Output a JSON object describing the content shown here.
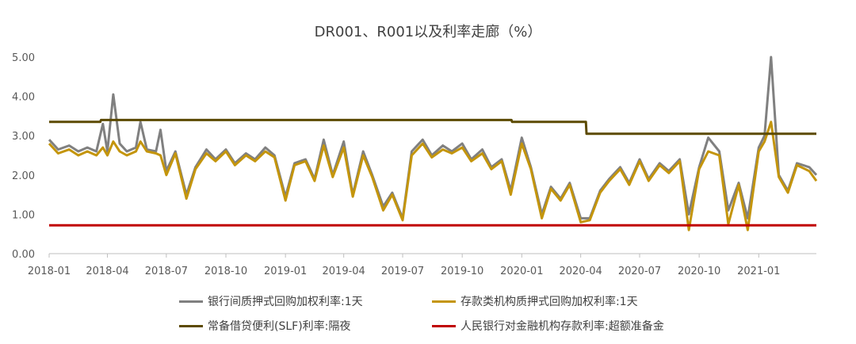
{
  "chart_data": {
    "type": "line",
    "title": "DR001、R001以及利率走廊（%）",
    "ylim": [
      0,
      5
    ],
    "yticks": [
      "0.00",
      "1.00",
      "2.00",
      "3.00",
      "4.00",
      "5.00"
    ],
    "x_range": [
      "2018-01-01",
      "2021-03-31"
    ],
    "xticks": [
      "2018-01",
      "2018-04",
      "2018-07",
      "2018-10",
      "2019-01",
      "2019-04",
      "2019-07",
      "2019-10",
      "2020-01",
      "2020-04",
      "2020-07",
      "2020-10",
      "2021-01"
    ],
    "grid": false,
    "legend_position": "bottom",
    "series": [
      {
        "name": "银行间质押式回购加权利率:1天",
        "color": "#808080",
        "points": [
          [
            "2018-01-01",
            2.9
          ],
          [
            "2018-01-15",
            2.65
          ],
          [
            "2018-02-01",
            2.75
          ],
          [
            "2018-02-15",
            2.6
          ],
          [
            "2018-03-01",
            2.7
          ],
          [
            "2018-03-15",
            2.6
          ],
          [
            "2018-03-25",
            3.3
          ],
          [
            "2018-04-01",
            2.6
          ],
          [
            "2018-04-10",
            4.05
          ],
          [
            "2018-04-20",
            2.8
          ],
          [
            "2018-05-01",
            2.6
          ],
          [
            "2018-05-15",
            2.7
          ],
          [
            "2018-05-22",
            3.35
          ],
          [
            "2018-06-01",
            2.65
          ],
          [
            "2018-06-15",
            2.6
          ],
          [
            "2018-06-22",
            3.15
          ],
          [
            "2018-07-01",
            2.1
          ],
          [
            "2018-07-15",
            2.6
          ],
          [
            "2018-08-01",
            1.5
          ],
          [
            "2018-08-15",
            2.2
          ],
          [
            "2018-09-01",
            2.65
          ],
          [
            "2018-09-15",
            2.4
          ],
          [
            "2018-10-01",
            2.65
          ],
          [
            "2018-10-15",
            2.3
          ],
          [
            "2018-11-01",
            2.55
          ],
          [
            "2018-11-15",
            2.4
          ],
          [
            "2018-12-01",
            2.7
          ],
          [
            "2018-12-15",
            2.5
          ],
          [
            "2019-01-01",
            1.45
          ],
          [
            "2019-01-15",
            2.3
          ],
          [
            "2019-02-01",
            2.4
          ],
          [
            "2019-02-15",
            1.9
          ],
          [
            "2019-03-01",
            2.9
          ],
          [
            "2019-03-15",
            2.0
          ],
          [
            "2019-04-01",
            2.85
          ],
          [
            "2019-04-15",
            1.5
          ],
          [
            "2019-05-01",
            2.6
          ],
          [
            "2019-05-15",
            2.0
          ],
          [
            "2019-06-01",
            1.2
          ],
          [
            "2019-06-15",
            1.55
          ],
          [
            "2019-07-01",
            0.9
          ],
          [
            "2019-07-15",
            2.6
          ],
          [
            "2019-08-01",
            2.9
          ],
          [
            "2019-08-15",
            2.5
          ],
          [
            "2019-09-01",
            2.75
          ],
          [
            "2019-09-15",
            2.6
          ],
          [
            "2019-10-01",
            2.8
          ],
          [
            "2019-10-15",
            2.4
          ],
          [
            "2019-11-01",
            2.65
          ],
          [
            "2019-11-15",
            2.2
          ],
          [
            "2019-12-01",
            2.4
          ],
          [
            "2019-12-15",
            1.6
          ],
          [
            "2020-01-01",
            2.95
          ],
          [
            "2020-01-15",
            2.2
          ],
          [
            "2020-02-01",
            1.0
          ],
          [
            "2020-02-15",
            1.7
          ],
          [
            "2020-03-01",
            1.4
          ],
          [
            "2020-03-15",
            1.8
          ],
          [
            "2020-04-01",
            0.9
          ],
          [
            "2020-04-15",
            0.9
          ],
          [
            "2020-05-01",
            1.6
          ],
          [
            "2020-05-15",
            1.9
          ],
          [
            "2020-06-01",
            2.2
          ],
          [
            "2020-06-15",
            1.8
          ],
          [
            "2020-07-01",
            2.4
          ],
          [
            "2020-07-15",
            1.9
          ],
          [
            "2020-08-01",
            2.3
          ],
          [
            "2020-08-15",
            2.1
          ],
          [
            "2020-09-01",
            2.4
          ],
          [
            "2020-09-15",
            1.0
          ],
          [
            "2020-10-01",
            2.2
          ],
          [
            "2020-10-15",
            2.95
          ],
          [
            "2020-11-01",
            2.6
          ],
          [
            "2020-11-15",
            1.1
          ],
          [
            "2020-12-01",
            1.8
          ],
          [
            "2020-12-15",
            0.9
          ],
          [
            "2021-01-01",
            2.7
          ],
          [
            "2021-01-10",
            3.0
          ],
          [
            "2021-01-20",
            5.0
          ],
          [
            "2021-02-01",
            2.0
          ],
          [
            "2021-02-15",
            1.6
          ],
          [
            "2021-03-01",
            2.3
          ],
          [
            "2021-03-20",
            2.2
          ],
          [
            "2021-03-31",
            2.0
          ]
        ]
      },
      {
        "name": "存款类机构质押式回购加权利率:1天",
        "color": "#C4950C",
        "points": [
          [
            "2018-01-01",
            2.8
          ],
          [
            "2018-01-15",
            2.55
          ],
          [
            "2018-02-01",
            2.65
          ],
          [
            "2018-02-15",
            2.5
          ],
          [
            "2018-03-01",
            2.6
          ],
          [
            "2018-03-15",
            2.5
          ],
          [
            "2018-03-25",
            2.7
          ],
          [
            "2018-04-01",
            2.5
          ],
          [
            "2018-04-10",
            2.85
          ],
          [
            "2018-04-20",
            2.6
          ],
          [
            "2018-05-01",
            2.5
          ],
          [
            "2018-05-15",
            2.6
          ],
          [
            "2018-05-22",
            2.85
          ],
          [
            "2018-06-01",
            2.6
          ],
          [
            "2018-06-15",
            2.55
          ],
          [
            "2018-06-22",
            2.5
          ],
          [
            "2018-07-01",
            2.0
          ],
          [
            "2018-07-15",
            2.55
          ],
          [
            "2018-08-01",
            1.4
          ],
          [
            "2018-08-15",
            2.15
          ],
          [
            "2018-09-01",
            2.55
          ],
          [
            "2018-09-15",
            2.35
          ],
          [
            "2018-10-01",
            2.6
          ],
          [
            "2018-10-15",
            2.25
          ],
          [
            "2018-11-01",
            2.5
          ],
          [
            "2018-11-15",
            2.35
          ],
          [
            "2018-12-01",
            2.6
          ],
          [
            "2018-12-15",
            2.45
          ],
          [
            "2019-01-01",
            1.35
          ],
          [
            "2019-01-15",
            2.25
          ],
          [
            "2019-02-01",
            2.35
          ],
          [
            "2019-02-15",
            1.85
          ],
          [
            "2019-03-01",
            2.75
          ],
          [
            "2019-03-15",
            1.95
          ],
          [
            "2019-04-01",
            2.7
          ],
          [
            "2019-04-15",
            1.45
          ],
          [
            "2019-05-01",
            2.5
          ],
          [
            "2019-05-15",
            1.95
          ],
          [
            "2019-06-01",
            1.1
          ],
          [
            "2019-06-15",
            1.5
          ],
          [
            "2019-07-01",
            0.85
          ],
          [
            "2019-07-15",
            2.5
          ],
          [
            "2019-08-01",
            2.8
          ],
          [
            "2019-08-15",
            2.45
          ],
          [
            "2019-09-01",
            2.65
          ],
          [
            "2019-09-15",
            2.55
          ],
          [
            "2019-10-01",
            2.7
          ],
          [
            "2019-10-15",
            2.35
          ],
          [
            "2019-11-01",
            2.55
          ],
          [
            "2019-11-15",
            2.15
          ],
          [
            "2019-12-01",
            2.35
          ],
          [
            "2019-12-15",
            1.5
          ],
          [
            "2020-01-01",
            2.8
          ],
          [
            "2020-01-15",
            2.15
          ],
          [
            "2020-02-01",
            0.9
          ],
          [
            "2020-02-15",
            1.65
          ],
          [
            "2020-03-01",
            1.35
          ],
          [
            "2020-03-15",
            1.75
          ],
          [
            "2020-04-01",
            0.8
          ],
          [
            "2020-04-15",
            0.85
          ],
          [
            "2020-05-01",
            1.55
          ],
          [
            "2020-05-15",
            1.85
          ],
          [
            "2020-06-01",
            2.15
          ],
          [
            "2020-06-15",
            1.75
          ],
          [
            "2020-07-01",
            2.35
          ],
          [
            "2020-07-15",
            1.85
          ],
          [
            "2020-08-01",
            2.25
          ],
          [
            "2020-08-15",
            2.05
          ],
          [
            "2020-09-01",
            2.35
          ],
          [
            "2020-09-15",
            0.6
          ],
          [
            "2020-10-01",
            2.15
          ],
          [
            "2020-10-15",
            2.6
          ],
          [
            "2020-11-01",
            2.5
          ],
          [
            "2020-11-15",
            0.75
          ],
          [
            "2020-12-01",
            1.75
          ],
          [
            "2020-12-15",
            0.6
          ],
          [
            "2021-01-01",
            2.6
          ],
          [
            "2021-01-10",
            2.85
          ],
          [
            "2021-01-20",
            3.35
          ],
          [
            "2021-02-01",
            1.95
          ],
          [
            "2021-02-15",
            1.55
          ],
          [
            "2021-03-01",
            2.25
          ],
          [
            "2021-03-20",
            2.1
          ],
          [
            "2021-03-31",
            1.85
          ]
        ]
      },
      {
        "name": "常备借贷便利(SLF)利率:隔夜",
        "color": "#5C4A00",
        "points": [
          [
            "2018-01-01",
            3.35
          ],
          [
            "2018-03-21",
            3.35
          ],
          [
            "2018-03-22",
            3.4
          ],
          [
            "2019-12-16",
            3.4
          ],
          [
            "2019-12-17",
            3.35
          ],
          [
            "2020-04-09",
            3.35
          ],
          [
            "2020-04-10",
            3.05
          ],
          [
            "2021-03-31",
            3.05
          ]
        ]
      },
      {
        "name": "人民银行对金融机构存款利率:超额准备金",
        "color": "#C00000",
        "points": [
          [
            "2018-01-01",
            0.72
          ],
          [
            "2021-03-31",
            0.72
          ]
        ]
      }
    ]
  }
}
